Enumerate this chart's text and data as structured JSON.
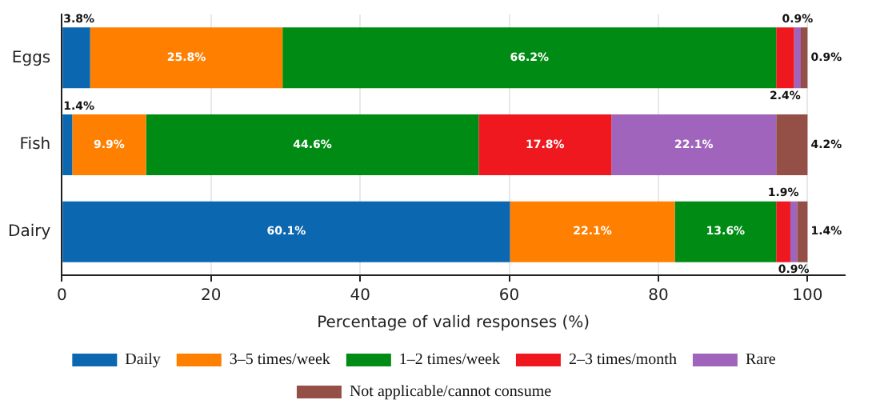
{
  "chart_data": {
    "type": "bar",
    "orientation": "horizontal",
    "stacked": true,
    "xlabel": "Percentage of valid responses (%)",
    "categories": [
      "Eggs",
      "Fish",
      "Dairy"
    ],
    "series": [
      {
        "name": "Daily",
        "color": "#0a67b0",
        "values": [
          3.8,
          1.4,
          60.1
        ],
        "value_labels": [
          "3.8%",
          "1.4%",
          "60.1%"
        ]
      },
      {
        "name": "3–5 times/week",
        "color": "#ff7f00",
        "values": [
          25.8,
          9.9,
          22.1
        ],
        "value_labels": [
          "25.8%",
          "9.9%",
          "22.1%"
        ]
      },
      {
        "name": "1–2 times/week",
        "color": "#008c14",
        "values": [
          66.2,
          44.6,
          13.6
        ],
        "value_labels": [
          "66.2%",
          "44.6%",
          "13.6%"
        ]
      },
      {
        "name": "2–3 times/month",
        "color": "#f0181f",
        "values": [
          2.4,
          17.8,
          1.9
        ],
        "value_labels": [
          "2.4%",
          "17.8%",
          "1.9%"
        ]
      },
      {
        "name": "Rare",
        "color": "#a064bc",
        "values": [
          0.9,
          22.1,
          0.9
        ],
        "value_labels": [
          "0.9%",
          "22.1%",
          "0.9%"
        ]
      },
      {
        "name": "Not applicable/cannot consume",
        "color": "#944f46",
        "values": [
          0.9,
          4.2,
          1.4
        ],
        "value_labels": [
          "0.9%",
          "4.2%",
          "1.4%"
        ]
      }
    ],
    "xlim": [
      0,
      105
    ],
    "xticks": [
      0,
      20,
      40,
      60,
      80,
      100
    ],
    "grid": "x",
    "legend": "bottom"
  }
}
